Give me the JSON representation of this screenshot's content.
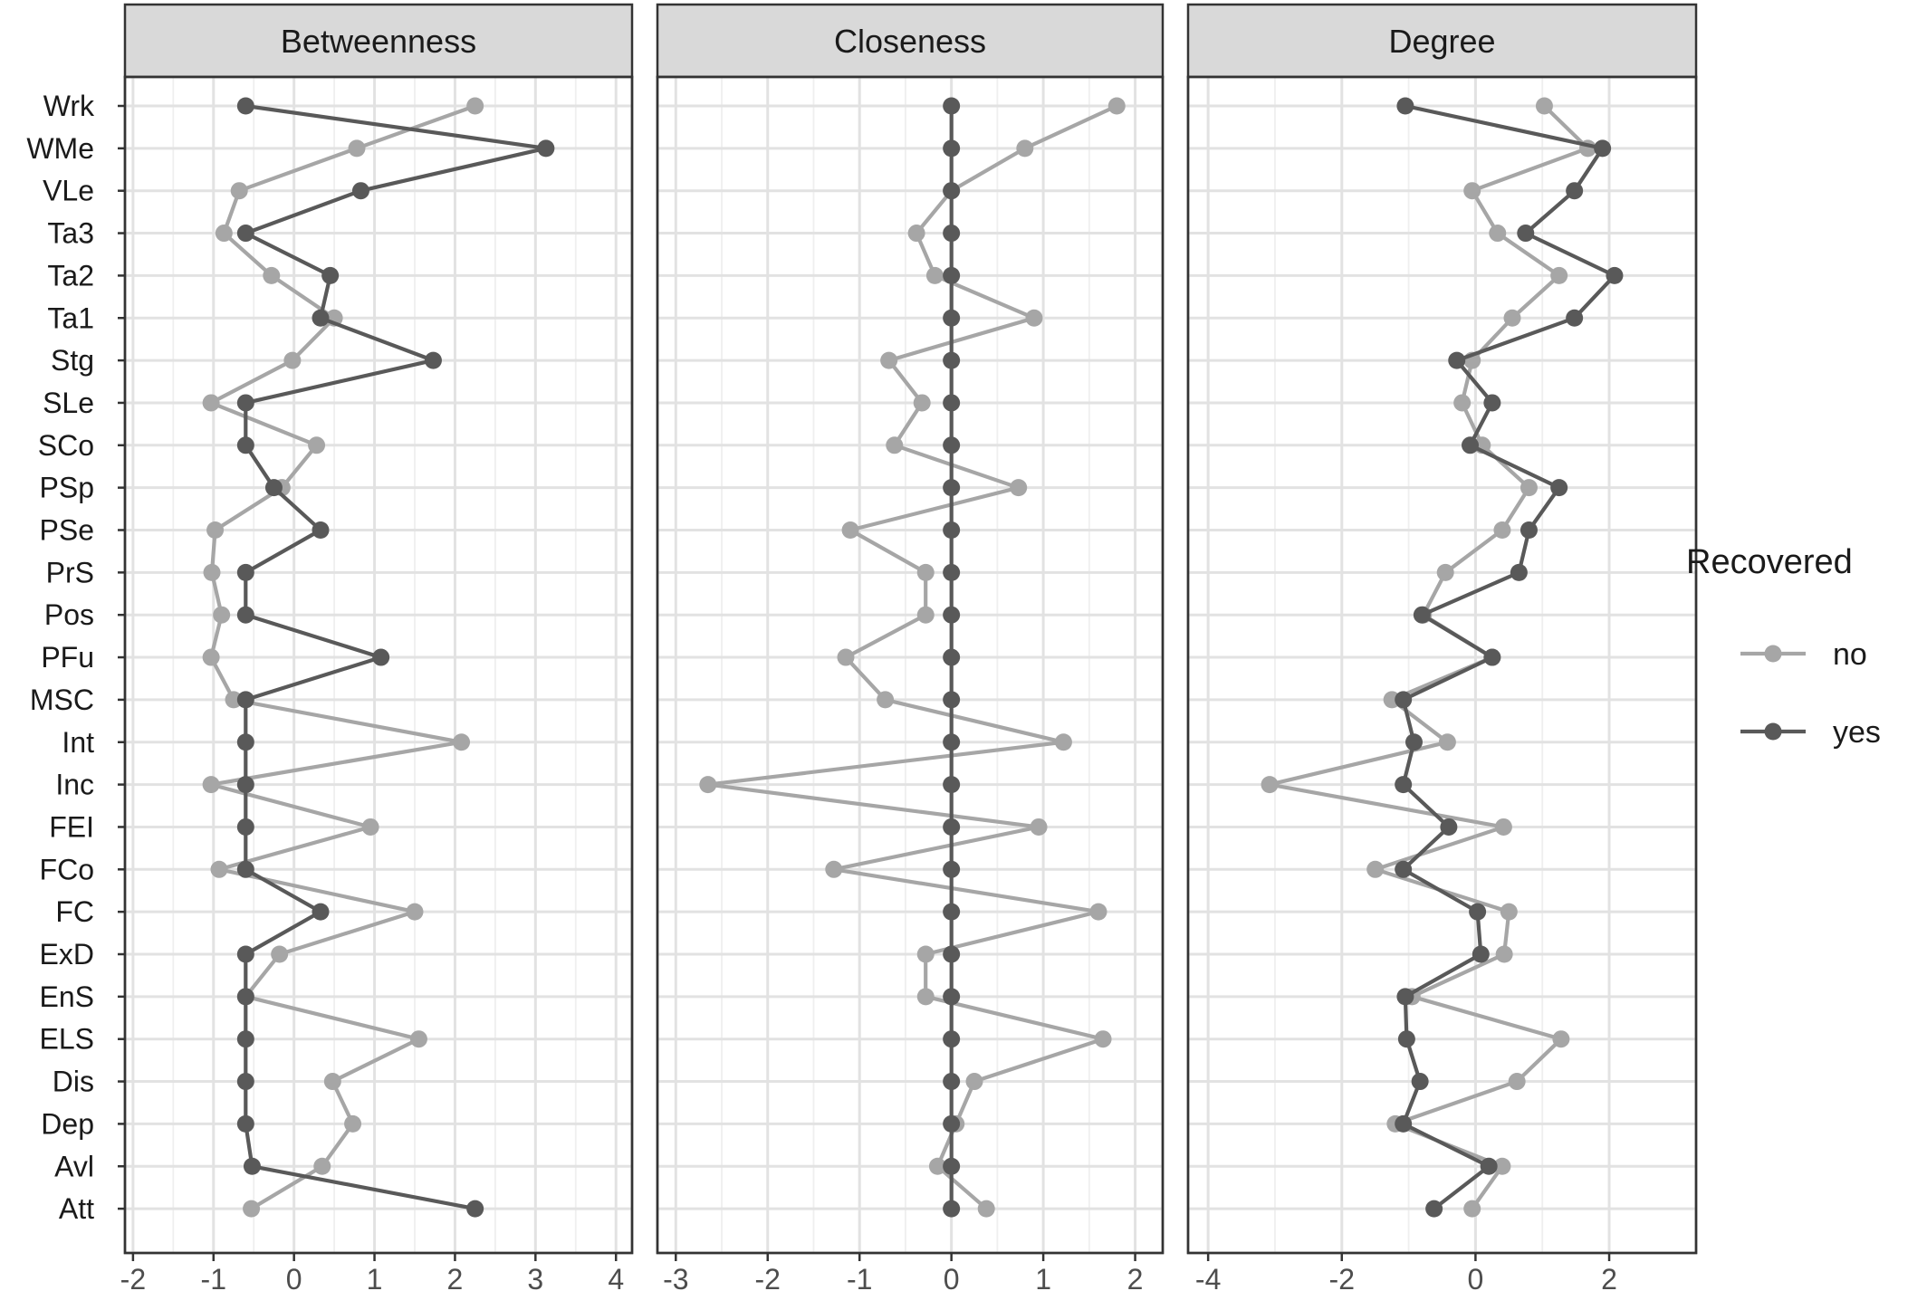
{
  "chart_data": {
    "type": "line",
    "categories": [
      "Wrk",
      "WMe",
      "VLe",
      "Ta3",
      "Ta2",
      "Ta1",
      "Stg",
      "SLe",
      "SCo",
      "PSp",
      "PSe",
      "PrS",
      "Pos",
      "PFu",
      "MSC",
      "Int",
      "Inc",
      "FEI",
      "FCo",
      "FC",
      "ExD",
      "EnS",
      "ELS",
      "Dis",
      "Dep",
      "Avl",
      "Att"
    ],
    "legend": {
      "title": "Recovered",
      "placement": "right"
    },
    "colors": {
      "no": "#a6a6a6",
      "yes": "#595959"
    },
    "grid": true,
    "panels": [
      {
        "title": "Betweenness",
        "xlim": [
          -2.1,
          4.2
        ],
        "ticks": [
          -2,
          -1,
          0,
          1,
          2,
          3,
          4
        ],
        "tick_labels": [
          "-2",
          "-1",
          "0",
          "1",
          "2",
          "3",
          "4"
        ],
        "series": [
          {
            "name": "no",
            "values": [
              2.25,
              0.78,
              -0.68,
              -0.87,
              -0.28,
              0.5,
              -0.02,
              -1.03,
              0.28,
              -0.15,
              -0.98,
              -1.02,
              -0.9,
              -1.03,
              -0.75,
              2.08,
              -1.03,
              0.95,
              -0.93,
              1.5,
              -0.18,
              -0.6,
              1.55,
              0.48,
              0.73,
              0.35,
              -0.53
            ]
          },
          {
            "name": "yes",
            "values": [
              -0.6,
              3.13,
              0.83,
              -0.6,
              0.45,
              0.33,
              1.73,
              -0.6,
              -0.6,
              -0.25,
              0.33,
              -0.6,
              -0.6,
              1.08,
              -0.6,
              -0.6,
              -0.6,
              -0.6,
              -0.6,
              0.33,
              -0.6,
              -0.6,
              -0.6,
              -0.6,
              -0.6,
              -0.52,
              2.25
            ]
          }
        ]
      },
      {
        "title": "Closeness",
        "xlim": [
          -3.2,
          2.3
        ],
        "ticks": [
          -3,
          -2,
          -1,
          0,
          1,
          2
        ],
        "tick_labels": [
          "-3",
          "-2",
          "-1",
          "0",
          "1",
          "2"
        ],
        "series": [
          {
            "name": "no",
            "values": [
              1.8,
              0.8,
              0.0,
              -0.38,
              -0.18,
              0.9,
              -0.68,
              -0.32,
              -0.62,
              0.73,
              -1.1,
              -0.28,
              -0.28,
              -1.15,
              -0.72,
              1.22,
              -2.65,
              0.95,
              -1.28,
              1.6,
              -0.28,
              -0.28,
              1.65,
              0.25,
              0.05,
              -0.15,
              0.38
            ]
          },
          {
            "name": "yes",
            "values": [
              0,
              0,
              0,
              0,
              0,
              0,
              0,
              0,
              0,
              0,
              0,
              0,
              0,
              0,
              0,
              0,
              0,
              0,
              0,
              0,
              0,
              0,
              0,
              0,
              0,
              0,
              0
            ]
          }
        ]
      },
      {
        "title": "Degree",
        "xlim": [
          -4.3,
          3.3
        ],
        "ticks": [
          -4,
          -2,
          0,
          2
        ],
        "tick_labels": [
          "-4",
          "-2",
          "0",
          "2"
        ],
        "series": [
          {
            "name": "no",
            "values": [
              1.03,
              1.68,
              -0.05,
              0.33,
              1.25,
              0.55,
              -0.05,
              -0.2,
              0.1,
              0.8,
              0.4,
              -0.45,
              -0.78,
              0.25,
              -1.25,
              -0.42,
              -3.08,
              0.42,
              -1.5,
              0.5,
              0.43,
              -0.95,
              1.28,
              0.62,
              -1.2,
              0.4,
              -0.05
            ]
          },
          {
            "name": "yes",
            "values": [
              -1.05,
              1.9,
              1.48,
              0.75,
              2.08,
              1.48,
              -0.28,
              0.25,
              -0.08,
              1.25,
              0.8,
              0.65,
              -0.8,
              0.25,
              -1.08,
              -0.92,
              -1.08,
              -0.4,
              -1.08,
              0.03,
              0.08,
              -1.05,
              -1.03,
              -0.83,
              -1.08,
              0.2,
              -0.62
            ]
          }
        ]
      }
    ]
  }
}
